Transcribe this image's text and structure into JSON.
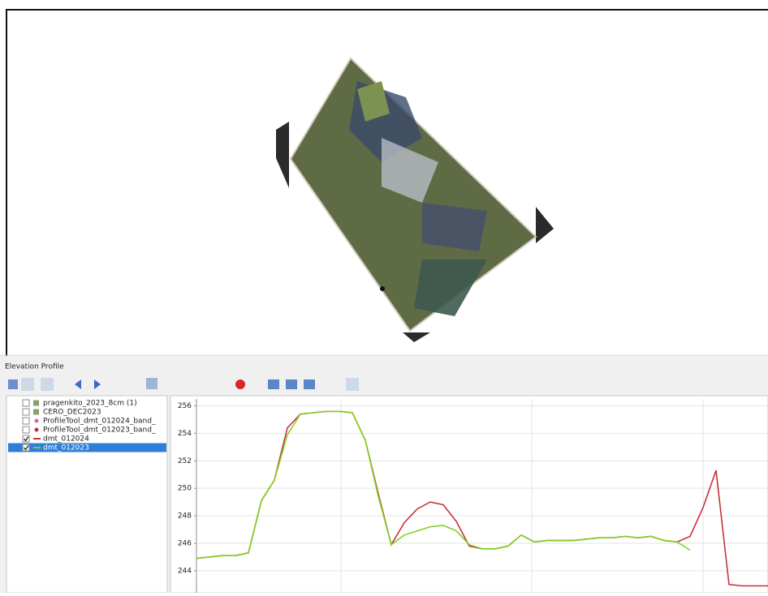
{
  "panel": {
    "title": "Elevation Profile"
  },
  "layers": [
    {
      "name": "pragenkito_2023_8cm (1)",
      "checked": false,
      "icon": "raster"
    },
    {
      "name": "CERO_DEC2023",
      "checked": false,
      "icon": "raster"
    },
    {
      "name": "ProfileTool_dmt_012024_band_",
      "checked": false,
      "icon": "point",
      "color": "#d46a8c"
    },
    {
      "name": "ProfileTool_dmt_012023_band_",
      "checked": false,
      "icon": "point",
      "color": "#c0303a"
    },
    {
      "name": "dmt_012024",
      "checked": true,
      "icon": "line",
      "color": "#c8323c",
      "values": [
        244.9,
        245.0,
        245.1,
        245.1,
        245.3,
        249.1,
        250.6,
        254.4,
        255.4,
        255.5,
        255.6,
        255.6,
        255.5,
        253.5,
        249.6,
        245.9,
        247.5,
        248.5,
        249.0,
        248.8,
        247.6,
        245.8,
        245.6,
        245.6,
        245.8,
        246.6,
        246.1,
        246.2,
        246.2,
        246.2,
        246.3,
        246.4,
        246.4,
        246.5,
        246.4,
        246.5,
        246.2,
        246.1,
        246.5,
        248.6,
        251.3,
        243.0,
        242.9,
        242.9,
        242.9
      ]
    },
    {
      "name": "dmt_012023",
      "checked": true,
      "selected": true,
      "icon": "line",
      "color": "#7ed321",
      "values": [
        244.9,
        245.0,
        245.1,
        245.1,
        245.3,
        249.1,
        250.6,
        253.9,
        255.4,
        255.5,
        255.6,
        255.6,
        255.5,
        253.5,
        249.4,
        245.9,
        246.6,
        246.9,
        247.2,
        247.3,
        246.9,
        245.9,
        245.6,
        245.6,
        245.8,
        246.6,
        246.1,
        246.2,
        246.2,
        246.2,
        246.3,
        246.4,
        246.4,
        246.5,
        246.4,
        246.5,
        246.2,
        246.1,
        245.5,
        null,
        null,
        null,
        null,
        null,
        null
      ]
    }
  ],
  "profile": {
    "type": "line",
    "ylim": [
      242.4,
      256.5
    ],
    "yticks": [
      244,
      246,
      248,
      250,
      252,
      254,
      256
    ],
    "grid": true
  }
}
